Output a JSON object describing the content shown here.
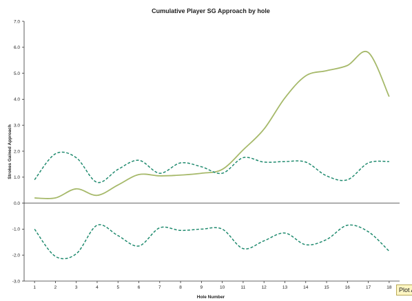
{
  "chart_data": {
    "type": "line",
    "title": "Cumulative Player SG Approach by hole",
    "xlabel": "Hole Number",
    "ylabel": "Strokes Gained Approach",
    "x": [
      1,
      2,
      3,
      4,
      5,
      6,
      7,
      8,
      9,
      10,
      11,
      12,
      13,
      14,
      15,
      16,
      17,
      18
    ],
    "xlim": [
      0.5,
      18.5
    ],
    "ylim": [
      -3.0,
      7.0
    ],
    "yticks": [
      "7.0",
      "6.0",
      "5.0",
      "4.0",
      "3.0",
      "2.0",
      "1.0",
      "0.0",
      "-1.0",
      "-2.0",
      "-3.0"
    ],
    "grid": false,
    "legend": "none",
    "series": [
      {
        "style": "solid",
        "color": "#a6b96a",
        "values": [
          0.2,
          0.2,
          0.55,
          0.3,
          0.7,
          1.1,
          1.05,
          1.08,
          1.15,
          1.3,
          2.05,
          2.85,
          4.05,
          4.9,
          5.1,
          5.3,
          5.8,
          4.1
        ]
      },
      {
        "style": "dashed",
        "color": "#1f8a6e",
        "values": [
          0.9,
          1.9,
          1.75,
          0.8,
          1.3,
          1.65,
          1.15,
          1.55,
          1.4,
          1.15,
          1.75,
          1.58,
          1.6,
          1.58,
          1.05,
          0.9,
          1.55,
          1.6
        ]
      },
      {
        "style": "dashed",
        "color": "#1f8a6e",
        "values": [
          -1.0,
          -2.05,
          -1.95,
          -0.85,
          -1.25,
          -1.65,
          -0.95,
          -1.05,
          -1.0,
          -1.0,
          -1.75,
          -1.45,
          -1.15,
          -1.6,
          -1.4,
          -0.85,
          -1.1,
          -1.85
        ]
      }
    ]
  },
  "badge": {
    "label": "Plot A"
  }
}
